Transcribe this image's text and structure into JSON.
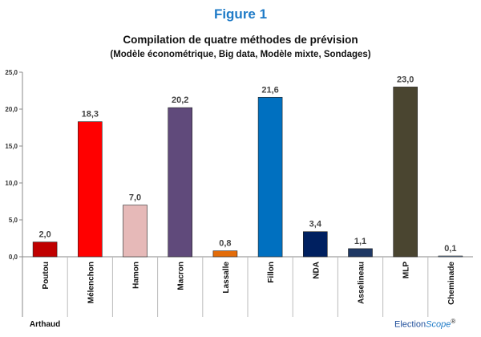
{
  "figure_label": "Figure 1",
  "chart_data": {
    "type": "bar",
    "title": "Compilation de quatre méthodes de prévision",
    "subtitle": "(Modèle économétrique, Big data, Modèle mixte, Sondages)",
    "categories": [
      "Poutou",
      "Mélenchon",
      "Hamon",
      "Macron",
      "Lassalle",
      "Fillon",
      "NDA",
      "Asselineau",
      "MLP",
      "Cheminade"
    ],
    "values": [
      2.0,
      18.3,
      7.0,
      20.2,
      0.8,
      21.6,
      3.4,
      1.1,
      23.0,
      0.1
    ],
    "data_labels": [
      "2,0",
      "18,3",
      "7,0",
      "20,2",
      "0,8",
      "21,6",
      "3,4",
      "1,1",
      "23,0",
      "0,1"
    ],
    "colors": [
      "#c00000",
      "#ff0000",
      "#e6b9b8",
      "#604a7b",
      "#e36c09",
      "#0070c0",
      "#002060",
      "#1f3864",
      "#4a4530",
      "#8db4e2"
    ],
    "yticks": [
      "0,0",
      "5,0",
      "10,0",
      "15,0",
      "20,0",
      "25,0"
    ],
    "ylim": [
      0,
      25
    ],
    "xlabel": "",
    "ylabel": "",
    "extra_category_label": "Arthaud",
    "grid": false,
    "legend": "none"
  },
  "watermark": {
    "part1": "Election",
    "part2": "Scope",
    "mark": "®"
  }
}
